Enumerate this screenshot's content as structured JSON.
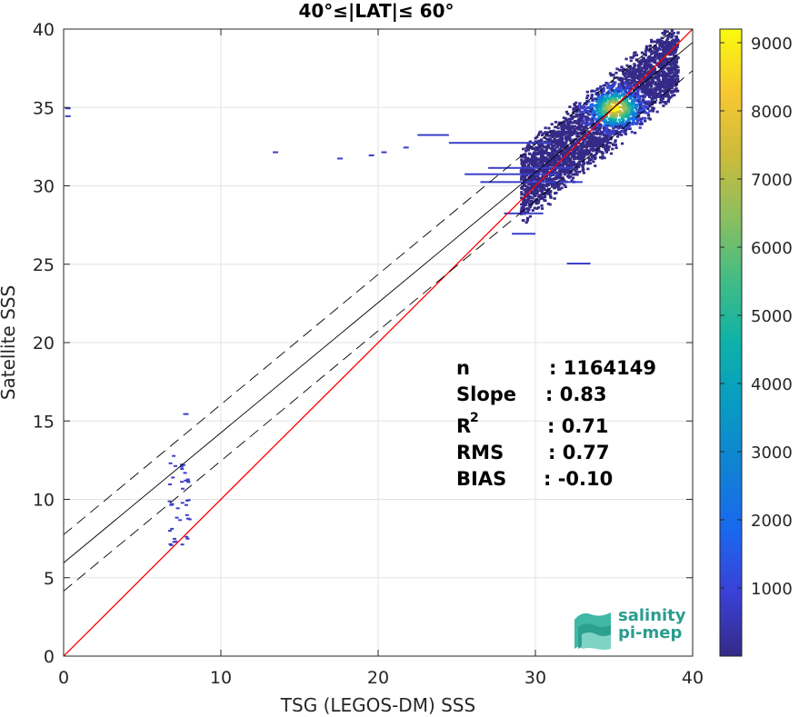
{
  "chart_data": {
    "type": "heatmap",
    "title": "40°≤|LAT|≤ 60°",
    "xlabel": "TSG (LEGOS-DM) SSS",
    "ylabel": "Satellite SSS",
    "xlim": [
      0,
      40
    ],
    "ylim": [
      0,
      40
    ],
    "xticks": [
      "0",
      "10",
      "20",
      "30",
      "40"
    ],
    "yticks": [
      "0",
      "5",
      "10",
      "15",
      "20",
      "25",
      "30",
      "35",
      "40"
    ],
    "grid": true,
    "colorbar": {
      "range": [
        0,
        9200
      ],
      "ticks": [
        "1000",
        "2000",
        "3000",
        "4000",
        "5000",
        "6000",
        "7000",
        "8000",
        "9000"
      ],
      "colormap": "parula"
    },
    "lines": [
      {
        "kind": "identity",
        "color": "#ff0000",
        "points": [
          [
            0,
            0
          ],
          [
            40,
            40
          ]
        ]
      },
      {
        "kind": "fit",
        "color": "#000000",
        "style": "solid",
        "points": [
          [
            0,
            5.95
          ],
          [
            40,
            39.15
          ]
        ]
      },
      {
        "kind": "fit_upper",
        "color": "#000000",
        "style": "dashed",
        "points": [
          [
            0,
            7.75
          ],
          [
            40,
            40.95
          ]
        ]
      },
      {
        "kind": "fit_lower",
        "color": "#000000",
        "style": "dashed",
        "points": [
          [
            0,
            4.15
          ],
          [
            40,
            37.35
          ]
        ]
      }
    ],
    "density": {
      "core": {
        "x": 35,
        "y": 35,
        "peak": 9000
      },
      "note": "2D histogram of counts: dense cloud around TSG 29-39 / Satellite 28-40 with sparse low-salinity points near TSG 6-8."
    },
    "stats": [
      {
        "label": "n",
        "value": ": 1164149"
      },
      {
        "label": "Slope",
        "value": ": 0.83"
      },
      {
        "label": "R",
        "sup": "2",
        "value": ": 0.71"
      },
      {
        "label": "RMS",
        "value": ": 0.77"
      },
      {
        "label": "BIAS",
        "value": ": -0.10"
      }
    ]
  },
  "logo": {
    "line1": "salinity",
    "line2": "pi-mep"
  },
  "colors": {
    "identity": "#ff0000",
    "fit": "#000000",
    "logo": "#2a9d8f"
  }
}
